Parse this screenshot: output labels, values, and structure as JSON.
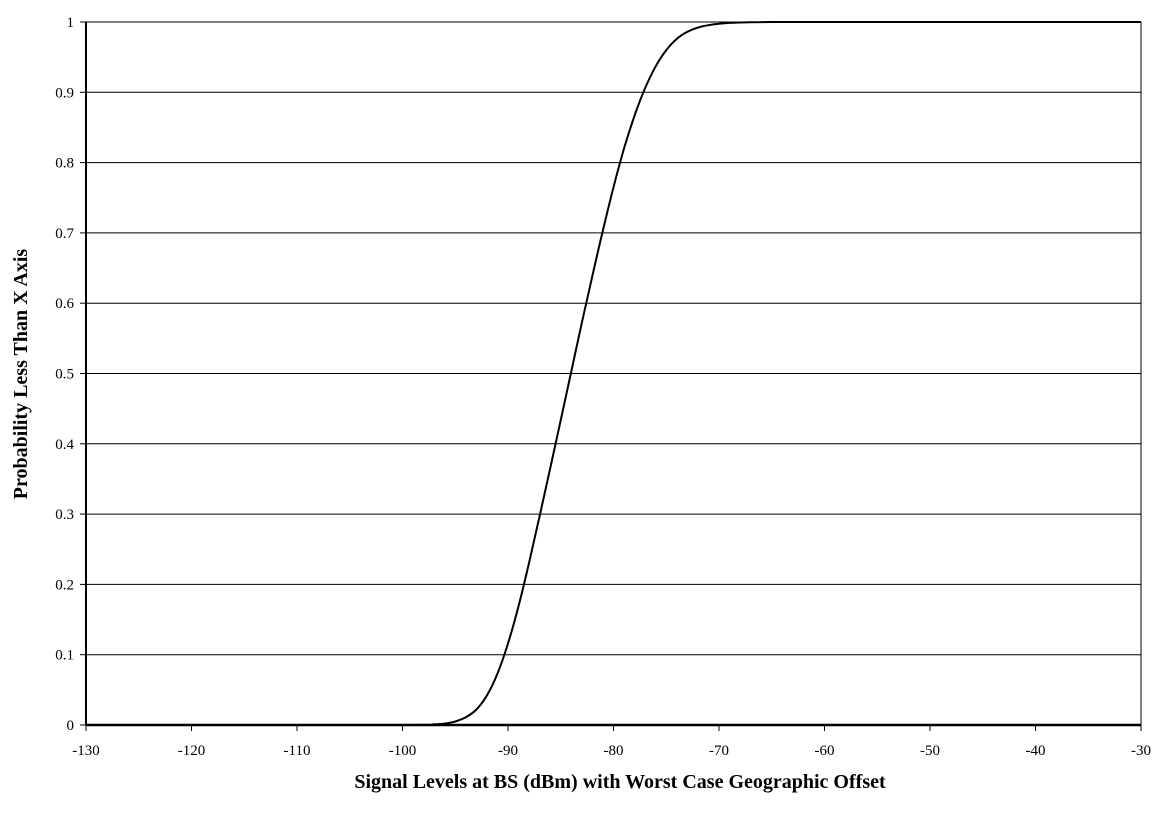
{
  "chart_data": {
    "type": "line",
    "title": "",
    "xlabel": "Signal Levels at BS (dBm) with Worst Case Geographic Offset",
    "ylabel": "Probability Less Than X Axis",
    "xlim": [
      -130,
      -30
    ],
    "ylim": [
      0,
      1
    ],
    "x_ticks": [
      "-130",
      "-120",
      "-110",
      "-100",
      "-90",
      "-80",
      "-70",
      "-60",
      "-50",
      "-40",
      "-30"
    ],
    "y_ticks": [
      "0",
      "0.1",
      "0.2",
      "0.3",
      "0.4",
      "0.5",
      "0.6",
      "0.7",
      "0.8",
      "0.9",
      "1"
    ],
    "grid": {
      "horizontal": true,
      "vertical": false
    },
    "legend": "none",
    "line_color": "#000000",
    "series": [
      {
        "x": [
          -130,
          -100,
          -97,
          -96,
          -95,
          -94,
          -93,
          -92,
          -91,
          -90,
          -89,
          -88,
          -87,
          -86,
          -85,
          -84,
          -83,
          -82,
          -81,
          -80,
          -79,
          -78,
          -77,
          -76,
          -75,
          -74,
          -73,
          -72,
          -71,
          -70,
          -69,
          -68,
          -67,
          -66,
          -65,
          -64,
          -63,
          -62,
          -61,
          -60,
          -59,
          -58,
          -57,
          -56,
          -30
        ],
        "y": [
          0,
          0,
          0.001,
          0.002,
          0.005,
          0.011,
          0.022,
          0.042,
          0.073,
          0.116,
          0.169,
          0.231,
          0.297,
          0.365,
          0.434,
          0.503,
          0.572,
          0.639,
          0.704,
          0.765,
          0.82,
          0.867,
          0.906,
          0.937,
          0.96,
          0.976,
          0.986,
          0.992,
          0.9955,
          0.9975,
          0.9987,
          0.9993,
          0.9997,
          0.9999,
          1,
          1,
          1,
          1,
          1,
          1,
          1,
          1,
          1,
          1,
          1
        ]
      }
    ]
  }
}
